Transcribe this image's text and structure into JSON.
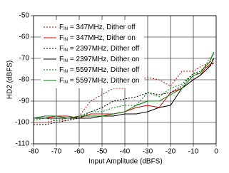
{
  "chart_data": {
    "type": "line",
    "x_label": "Input Amplitude (dBFS)",
    "y_label": "HD2 (dBFS)",
    "xlim": [
      -80,
      0
    ],
    "xticks": [
      -80,
      -70,
      -60,
      -50,
      -40,
      -30,
      -20,
      -10,
      0
    ],
    "ylim": [
      -110,
      -50
    ],
    "yticks": [
      -110,
      -100,
      -90,
      -80,
      -70,
      -60,
      -50
    ],
    "grid": true,
    "legend": "upper left",
    "x": [
      -80,
      -75,
      -70,
      -65,
      -60,
      -55,
      -50,
      -45,
      -40,
      -35,
      -30,
      -25,
      -20,
      -15,
      -10,
      -7,
      -5,
      -3,
      -1
    ],
    "series": [
      {
        "name": "FIN = 347MHz, Dither off",
        "color": "#e00000",
        "style": "dotted",
        "values": [
          -100,
          -100,
          -99,
          -99,
          -97,
          -90,
          -87,
          -84,
          -84,
          -80,
          -79,
          -80,
          -83,
          -76,
          -76,
          -74,
          -73,
          -72,
          -70
        ]
      },
      {
        "name": "FIN = 347MHz, Dither on",
        "color": "#e00000",
        "style": "solid",
        "values": [
          -98,
          -98,
          -97,
          -97,
          -98,
          -96,
          -96,
          -96,
          -95,
          -93,
          -92,
          -93,
          -86,
          -84,
          -80,
          -78,
          -75,
          -73,
          -72
        ]
      },
      {
        "name": "FIN = 2397MHz, Dither off",
        "color": "#000000",
        "style": "dotted",
        "values": [
          -101,
          -101,
          -100,
          -99,
          -98,
          -95,
          -93,
          -90,
          -89,
          -88,
          -86,
          -87,
          -86,
          -83,
          -77,
          -77,
          -74,
          -74,
          -72
        ]
      },
      {
        "name": "FIN = 2397MHz, Dither on",
        "color": "#000000",
        "style": "solid",
        "values": [
          -98,
          -98,
          -98,
          -98,
          -98,
          -98,
          -97,
          -97,
          -96,
          -96,
          -95,
          -93,
          -92,
          -84,
          -80,
          -78,
          -76,
          -74,
          -70
        ]
      },
      {
        "name": "FIN = 5597MHz, Dither off",
        "color": "#008000",
        "style": "dotted",
        "values": [
          -99,
          -98,
          -99,
          -98,
          -97,
          -95,
          -95,
          -93,
          -92,
          -92,
          -86,
          -88,
          -84,
          -82,
          -77,
          -76,
          -74,
          -70,
          -68
        ]
      },
      {
        "name": "FIN = 5597MHz, Dither on",
        "color": "#008000",
        "style": "solid",
        "values": [
          -98,
          -97,
          -97,
          -98,
          -97,
          -97,
          -97,
          -96,
          -95,
          -92,
          -90,
          -90,
          -87,
          -84,
          -78,
          -77,
          -74,
          -72,
          -67
        ]
      }
    ]
  }
}
